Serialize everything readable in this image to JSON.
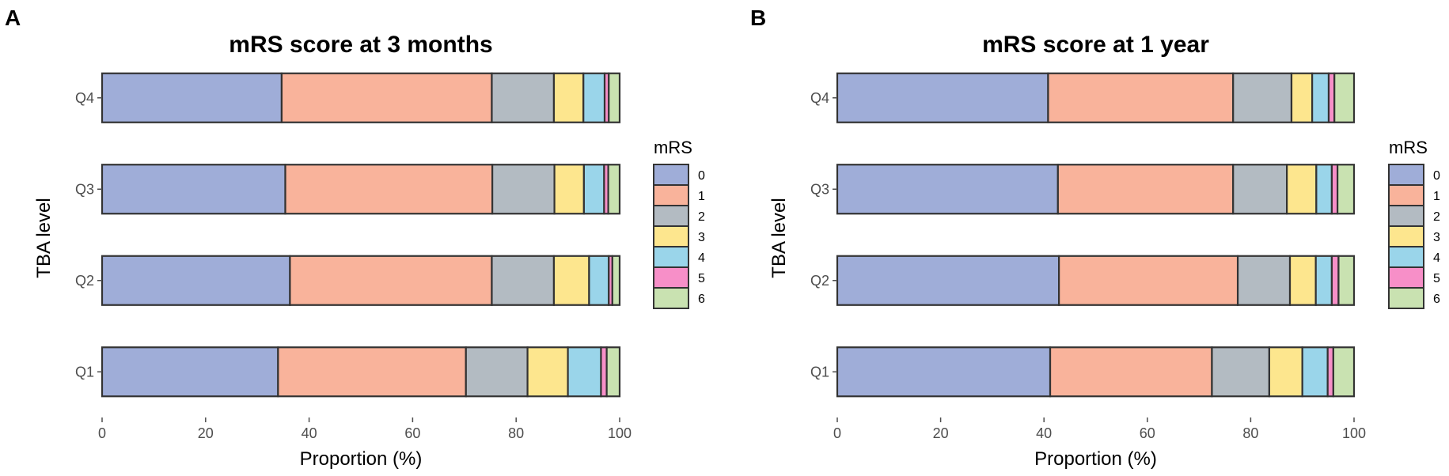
{
  "chart_data": [
    {
      "panel": "A",
      "type": "bar",
      "orientation": "horizontal",
      "stacked": true,
      "title": "mRS score at 3 months",
      "xlabel": "Proportion (%)",
      "ylabel": "TBA level",
      "xlim": [
        0,
        100
      ],
      "xticks": [
        0,
        20,
        40,
        60,
        80,
        100
      ],
      "categories": [
        "Q1",
        "Q2",
        "Q3",
        "Q4"
      ],
      "legend_title": "mRS",
      "legend_position": "right",
      "series": [
        {
          "name": "0",
          "color": "#9fadd8",
          "values": [
            34,
            36.3,
            35.4,
            34.7
          ]
        },
        {
          "name": "1",
          "color": "#f9b39b",
          "values": [
            36.3,
            39,
            40,
            40.6
          ]
        },
        {
          "name": "2",
          "color": "#b3bbc2",
          "values": [
            11.9,
            12,
            12,
            12
          ]
        },
        {
          "name": "3",
          "color": "#fde68e",
          "values": [
            7.8,
            6.8,
            5.7,
            5.7
          ]
        },
        {
          "name": "4",
          "color": "#9ad5ea",
          "values": [
            6.4,
            3.8,
            3.9,
            4.1
          ]
        },
        {
          "name": "5",
          "color": "#f78fc8",
          "values": [
            1.1,
            0.7,
            0.8,
            0.8
          ]
        },
        {
          "name": "6",
          "color": "#c9e2b1",
          "values": [
            2.5,
            1.4,
            2.2,
            2.1
          ]
        }
      ]
    },
    {
      "panel": "B",
      "type": "bar",
      "orientation": "horizontal",
      "stacked": true,
      "title": "mRS score at 1 year",
      "xlabel": "Proportion (%)",
      "ylabel": "TBA level",
      "xlim": [
        0,
        100
      ],
      "xticks": [
        0,
        20,
        40,
        60,
        80,
        100
      ],
      "categories": [
        "Q1",
        "Q2",
        "Q3",
        "Q4"
      ],
      "legend_title": "mRS",
      "legend_position": "right",
      "series": [
        {
          "name": "0",
          "color": "#9fadd8",
          "values": [
            41.2,
            42.9,
            42.7,
            40.8
          ]
        },
        {
          "name": "1",
          "color": "#f9b39b",
          "values": [
            31.3,
            34.6,
            33.9,
            35.8
          ]
        },
        {
          "name": "2",
          "color": "#b3bbc2",
          "values": [
            11.1,
            10.1,
            10.4,
            11.3
          ]
        },
        {
          "name": "3",
          "color": "#fde68e",
          "values": [
            6.4,
            5,
            5.7,
            4
          ]
        },
        {
          "name": "4",
          "color": "#9ad5ea",
          "values": [
            4.9,
            3.1,
            3,
            3.2
          ]
        },
        {
          "name": "5",
          "color": "#f78fc8",
          "values": [
            1.1,
            1.3,
            1.1,
            1.1
          ]
        },
        {
          "name": "6",
          "color": "#c9e2b1",
          "values": [
            4,
            3,
            3.2,
            3.8
          ]
        }
      ]
    }
  ]
}
